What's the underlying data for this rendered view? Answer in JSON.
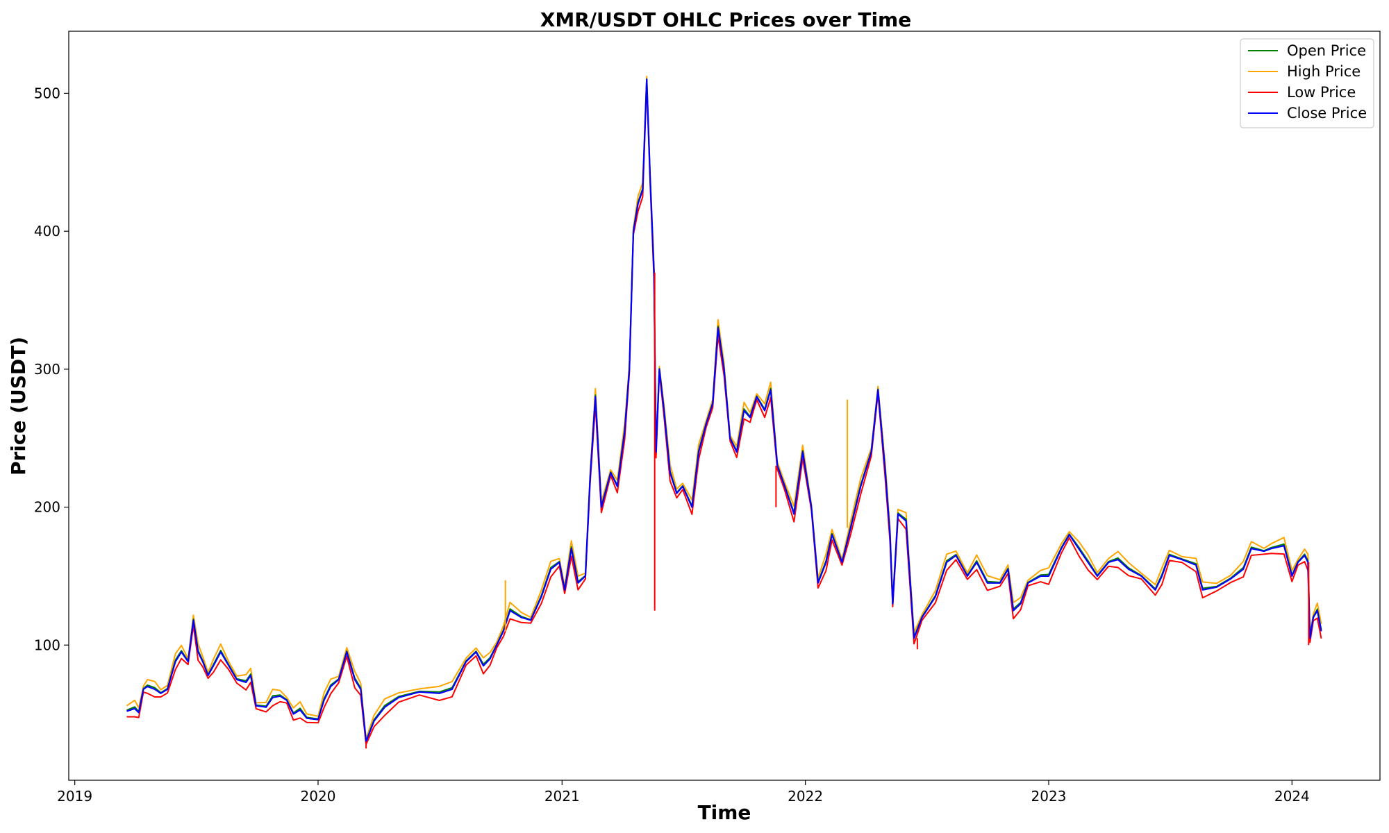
{
  "chart_data": {
    "type": "line",
    "title": "XMR/USDT OHLC Prices over Time",
    "xlabel": "Time",
    "ylabel": "Price (USDT)",
    "xlim": [
      "2018-12-23",
      "2024-05-12"
    ],
    "ylim": [
      2,
      545
    ],
    "x_ticks": [
      "2019",
      "2020",
      "2021",
      "2022",
      "2023",
      "2024"
    ],
    "y_ticks": [
      100,
      200,
      300,
      400,
      500
    ],
    "grid": false,
    "legend_position": "top-right",
    "series": [
      {
        "name": "Open Price",
        "color": "#008000"
      },
      {
        "name": "High Price",
        "color": "#ffa500"
      },
      {
        "name": "Low Price",
        "color": "#ff0000"
      },
      {
        "name": "Close Price",
        "color": "#0000ff"
      }
    ],
    "close_trace": [
      [
        "2019-03-20",
        52
      ],
      [
        "2019-04-01",
        54
      ],
      [
        "2019-04-07",
        51
      ],
      [
        "2019-04-14",
        68
      ],
      [
        "2019-04-20",
        70
      ],
      [
        "2019-05-01",
        68
      ],
      [
        "2019-05-10",
        65
      ],
      [
        "2019-05-20",
        68
      ],
      [
        "2019-06-01",
        88
      ],
      [
        "2019-06-10",
        95
      ],
      [
        "2019-06-20",
        88
      ],
      [
        "2019-06-28",
        118
      ],
      [
        "2019-07-05",
        95
      ],
      [
        "2019-07-12",
        88
      ],
      [
        "2019-07-20",
        78
      ],
      [
        "2019-07-28",
        85
      ],
      [
        "2019-08-08",
        95
      ],
      [
        "2019-08-20",
        85
      ],
      [
        "2019-09-01",
        75
      ],
      [
        "2019-09-15",
        73
      ],
      [
        "2019-09-22",
        78
      ],
      [
        "2019-09-30",
        56
      ],
      [
        "2019-10-15",
        55
      ],
      [
        "2019-10-25",
        62
      ],
      [
        "2019-11-05",
        63
      ],
      [
        "2019-11-15",
        60
      ],
      [
        "2019-11-25",
        50
      ],
      [
        "2019-12-05",
        53
      ],
      [
        "2019-12-15",
        47
      ],
      [
        "2020-01-01",
        46
      ],
      [
        "2020-01-10",
        60
      ],
      [
        "2020-01-20",
        70
      ],
      [
        "2020-02-01",
        75
      ],
      [
        "2020-02-13",
        95
      ],
      [
        "2020-02-25",
        75
      ],
      [
        "2020-03-05",
        68
      ],
      [
        "2020-03-13",
        30
      ],
      [
        "2020-03-25",
        45
      ],
      [
        "2020-04-10",
        55
      ],
      [
        "2020-05-01",
        62
      ],
      [
        "2020-06-01",
        66
      ],
      [
        "2020-07-01",
        65
      ],
      [
        "2020-07-20",
        68
      ],
      [
        "2020-08-10",
        88
      ],
      [
        "2020-08-25",
        95
      ],
      [
        "2020-09-05",
        85
      ],
      [
        "2020-09-15",
        90
      ],
      [
        "2020-09-25",
        100
      ],
      [
        "2020-10-05",
        110
      ],
      [
        "2020-10-15",
        125
      ],
      [
        "2020-11-01",
        120
      ],
      [
        "2020-11-15",
        118
      ],
      [
        "2020-12-01",
        135
      ],
      [
        "2020-12-15",
        155
      ],
      [
        "2020-12-28",
        160
      ],
      [
        "2021-01-05",
        140
      ],
      [
        "2021-01-15",
        170
      ],
      [
        "2021-01-25",
        145
      ],
      [
        "2021-02-05",
        150
      ],
      [
        "2021-02-12",
        220
      ],
      [
        "2021-02-20",
        280
      ],
      [
        "2021-03-01",
        200
      ],
      [
        "2021-03-15",
        225
      ],
      [
        "2021-03-25",
        215
      ],
      [
        "2021-04-05",
        255
      ],
      [
        "2021-04-12",
        300
      ],
      [
        "2021-04-18",
        400
      ],
      [
        "2021-04-25",
        420
      ],
      [
        "2021-05-02",
        430
      ],
      [
        "2021-05-08",
        510
      ],
      [
        "2021-05-13",
        440
      ],
      [
        "2021-05-19",
        370
      ],
      [
        "2021-05-22",
        240
      ],
      [
        "2021-05-27",
        300
      ],
      [
        "2021-06-03",
        270
      ],
      [
        "2021-06-12",
        225
      ],
      [
        "2021-06-22",
        210
      ],
      [
        "2021-07-01",
        215
      ],
      [
        "2021-07-15",
        200
      ],
      [
        "2021-07-25",
        240
      ],
      [
        "2021-08-05",
        260
      ],
      [
        "2021-08-15",
        275
      ],
      [
        "2021-08-23",
        330
      ],
      [
        "2021-09-01",
        300
      ],
      [
        "2021-09-10",
        250
      ],
      [
        "2021-09-20",
        240
      ],
      [
        "2021-10-01",
        270
      ],
      [
        "2021-10-10",
        265
      ],
      [
        "2021-10-20",
        280
      ],
      [
        "2021-11-01",
        270
      ],
      [
        "2021-11-10",
        285
      ],
      [
        "2021-11-20",
        230
      ],
      [
        "2021-12-01",
        215
      ],
      [
        "2021-12-15",
        195
      ],
      [
        "2021-12-28",
        240
      ],
      [
        "2022-01-10",
        200
      ],
      [
        "2022-01-20",
        145
      ],
      [
        "2022-02-01",
        160
      ],
      [
        "2022-02-10",
        180
      ],
      [
        "2022-02-25",
        160
      ],
      [
        "2022-03-10",
        185
      ],
      [
        "2022-03-25",
        215
      ],
      [
        "2022-04-10",
        240
      ],
      [
        "2022-04-20",
        285
      ],
      [
        "2022-05-01",
        225
      ],
      [
        "2022-05-08",
        180
      ],
      [
        "2022-05-12",
        130
      ],
      [
        "2022-05-20",
        195
      ],
      [
        "2022-06-01",
        190
      ],
      [
        "2022-06-13",
        105
      ],
      [
        "2022-06-25",
        120
      ],
      [
        "2022-07-15",
        135
      ],
      [
        "2022-08-01",
        160
      ],
      [
        "2022-08-15",
        165
      ],
      [
        "2022-09-01",
        150
      ],
      [
        "2022-09-15",
        160
      ],
      [
        "2022-10-01",
        145
      ],
      [
        "2022-10-20",
        145
      ],
      [
        "2022-11-01",
        155
      ],
      [
        "2022-11-09",
        125
      ],
      [
        "2022-11-20",
        130
      ],
      [
        "2022-12-01",
        145
      ],
      [
        "2022-12-20",
        150
      ],
      [
        "2023-01-01",
        150
      ],
      [
        "2023-01-20",
        170
      ],
      [
        "2023-02-01",
        180
      ],
      [
        "2023-02-15",
        170
      ],
      [
        "2023-03-01",
        160
      ],
      [
        "2023-03-15",
        150
      ],
      [
        "2023-04-01",
        160
      ],
      [
        "2023-04-15",
        162
      ],
      [
        "2023-05-01",
        155
      ],
      [
        "2023-05-20",
        150
      ],
      [
        "2023-06-10",
        140
      ],
      [
        "2023-06-20",
        150
      ],
      [
        "2023-07-01",
        165
      ],
      [
        "2023-07-20",
        162
      ],
      [
        "2023-08-10",
        158
      ],
      [
        "2023-08-20",
        140
      ],
      [
        "2023-09-10",
        142
      ],
      [
        "2023-10-01",
        148
      ],
      [
        "2023-10-20",
        155
      ],
      [
        "2023-11-01",
        170
      ],
      [
        "2023-11-20",
        168
      ],
      [
        "2023-12-01",
        170
      ],
      [
        "2023-12-20",
        172
      ],
      [
        "2024-01-01",
        150
      ],
      [
        "2024-01-10",
        160
      ],
      [
        "2024-01-20",
        165
      ],
      [
        "2024-01-25",
        160
      ],
      [
        "2024-01-28",
        105
      ],
      [
        "2024-02-02",
        120
      ],
      [
        "2024-02-08",
        125
      ],
      [
        "2024-02-14",
        110
      ]
    ],
    "spikes": [
      {
        "series": "Low Price",
        "x": "2021-05-20",
        "y": 125
      },
      {
        "series": "High Price",
        "x": "2022-03-05",
        "y": 278
      },
      {
        "series": "High Price",
        "x": "2020-10-08",
        "y": 147
      },
      {
        "series": "Low Price",
        "x": "2020-03-13",
        "y": 25
      },
      {
        "series": "Low Price",
        "x": "2022-06-18",
        "y": 97
      },
      {
        "series": "Low Price",
        "x": "2021-11-18",
        "y": 200
      },
      {
        "series": "Low Price",
        "x": "2024-01-26",
        "y": 100
      }
    ]
  }
}
